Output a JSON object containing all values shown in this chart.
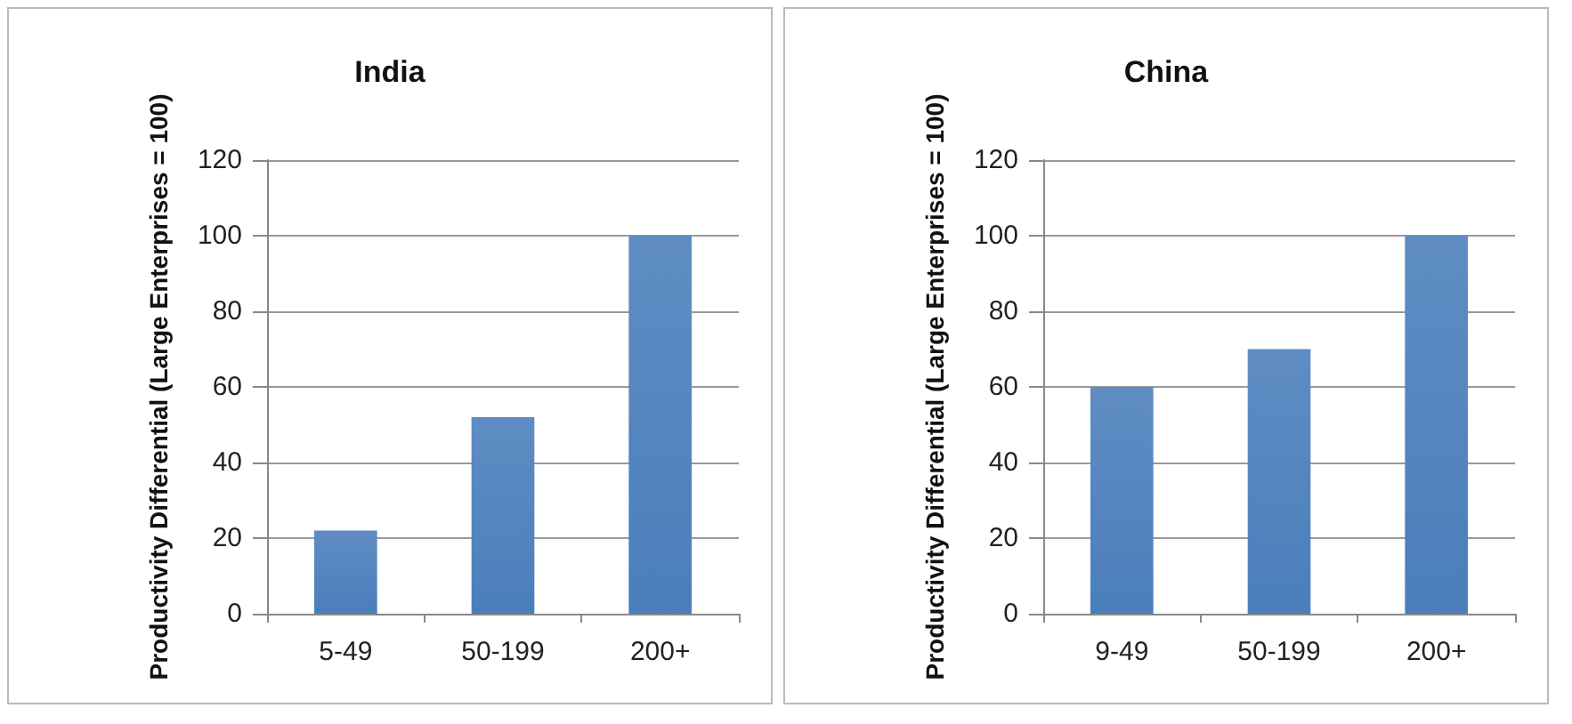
{
  "chart_data": [
    {
      "type": "bar",
      "title": "India",
      "ylabel": "Productivity Differential (Large Enterprises = 100)",
      "categories": [
        "5-49",
        "50-199",
        "200+"
      ],
      "values": [
        22,
        52,
        100
      ],
      "color": "#4a7ebb",
      "ylim": [
        0,
        120
      ],
      "yticks": [
        0,
        20,
        40,
        60,
        80,
        100,
        120
      ],
      "grid": "y"
    },
    {
      "type": "bar",
      "title": "China",
      "ylabel": "Productivity Differential (Large Enterprises = 100)",
      "categories": [
        "9-49",
        "50-199",
        "200+"
      ],
      "values": [
        60,
        70,
        100
      ],
      "color": "#4a7ebb",
      "ylim": [
        0,
        120
      ],
      "yticks": [
        0,
        20,
        40,
        60,
        80,
        100,
        120
      ],
      "grid": "y"
    }
  ]
}
